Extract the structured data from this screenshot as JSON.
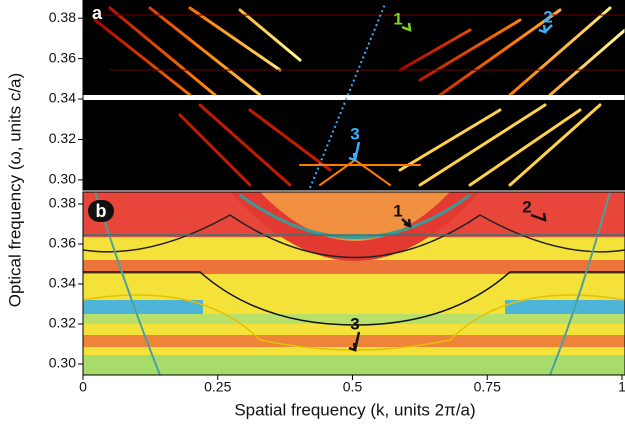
{
  "chart_data": [
    {
      "type": "heatmap",
      "panel_label": "a",
      "xlim": [
        0,
        1
      ],
      "ylim": [
        0.295,
        0.389
      ],
      "yticks": [
        {
          "value": 0.3,
          "label": "0.30"
        },
        0.32,
        {
          "value": 0.34,
          "label": "0.34"
        },
        0.36,
        0.38
      ],
      "annotations": [
        "1",
        "2",
        "3"
      ]
    },
    {
      "type": "heatmap",
      "panel_label": "b",
      "xlim": [
        0,
        1
      ],
      "ylim": [
        0.2945,
        0.386
      ],
      "xticks": [
        0,
        0.25,
        0.5,
        0.75,
        1
      ],
      "yticks": [
        {
          "value": 0.3,
          "label": "0.30"
        },
        0.32,
        {
          "value": 0.34,
          "label": "0.34"
        },
        0.36,
        0.38
      ],
      "xlabel": "Spatial frequency (k, units 2π/a)",
      "ylabel": "Optical frequency (ω, units c/a)",
      "annotations": [
        "1",
        "2",
        "3"
      ]
    }
  ]
}
